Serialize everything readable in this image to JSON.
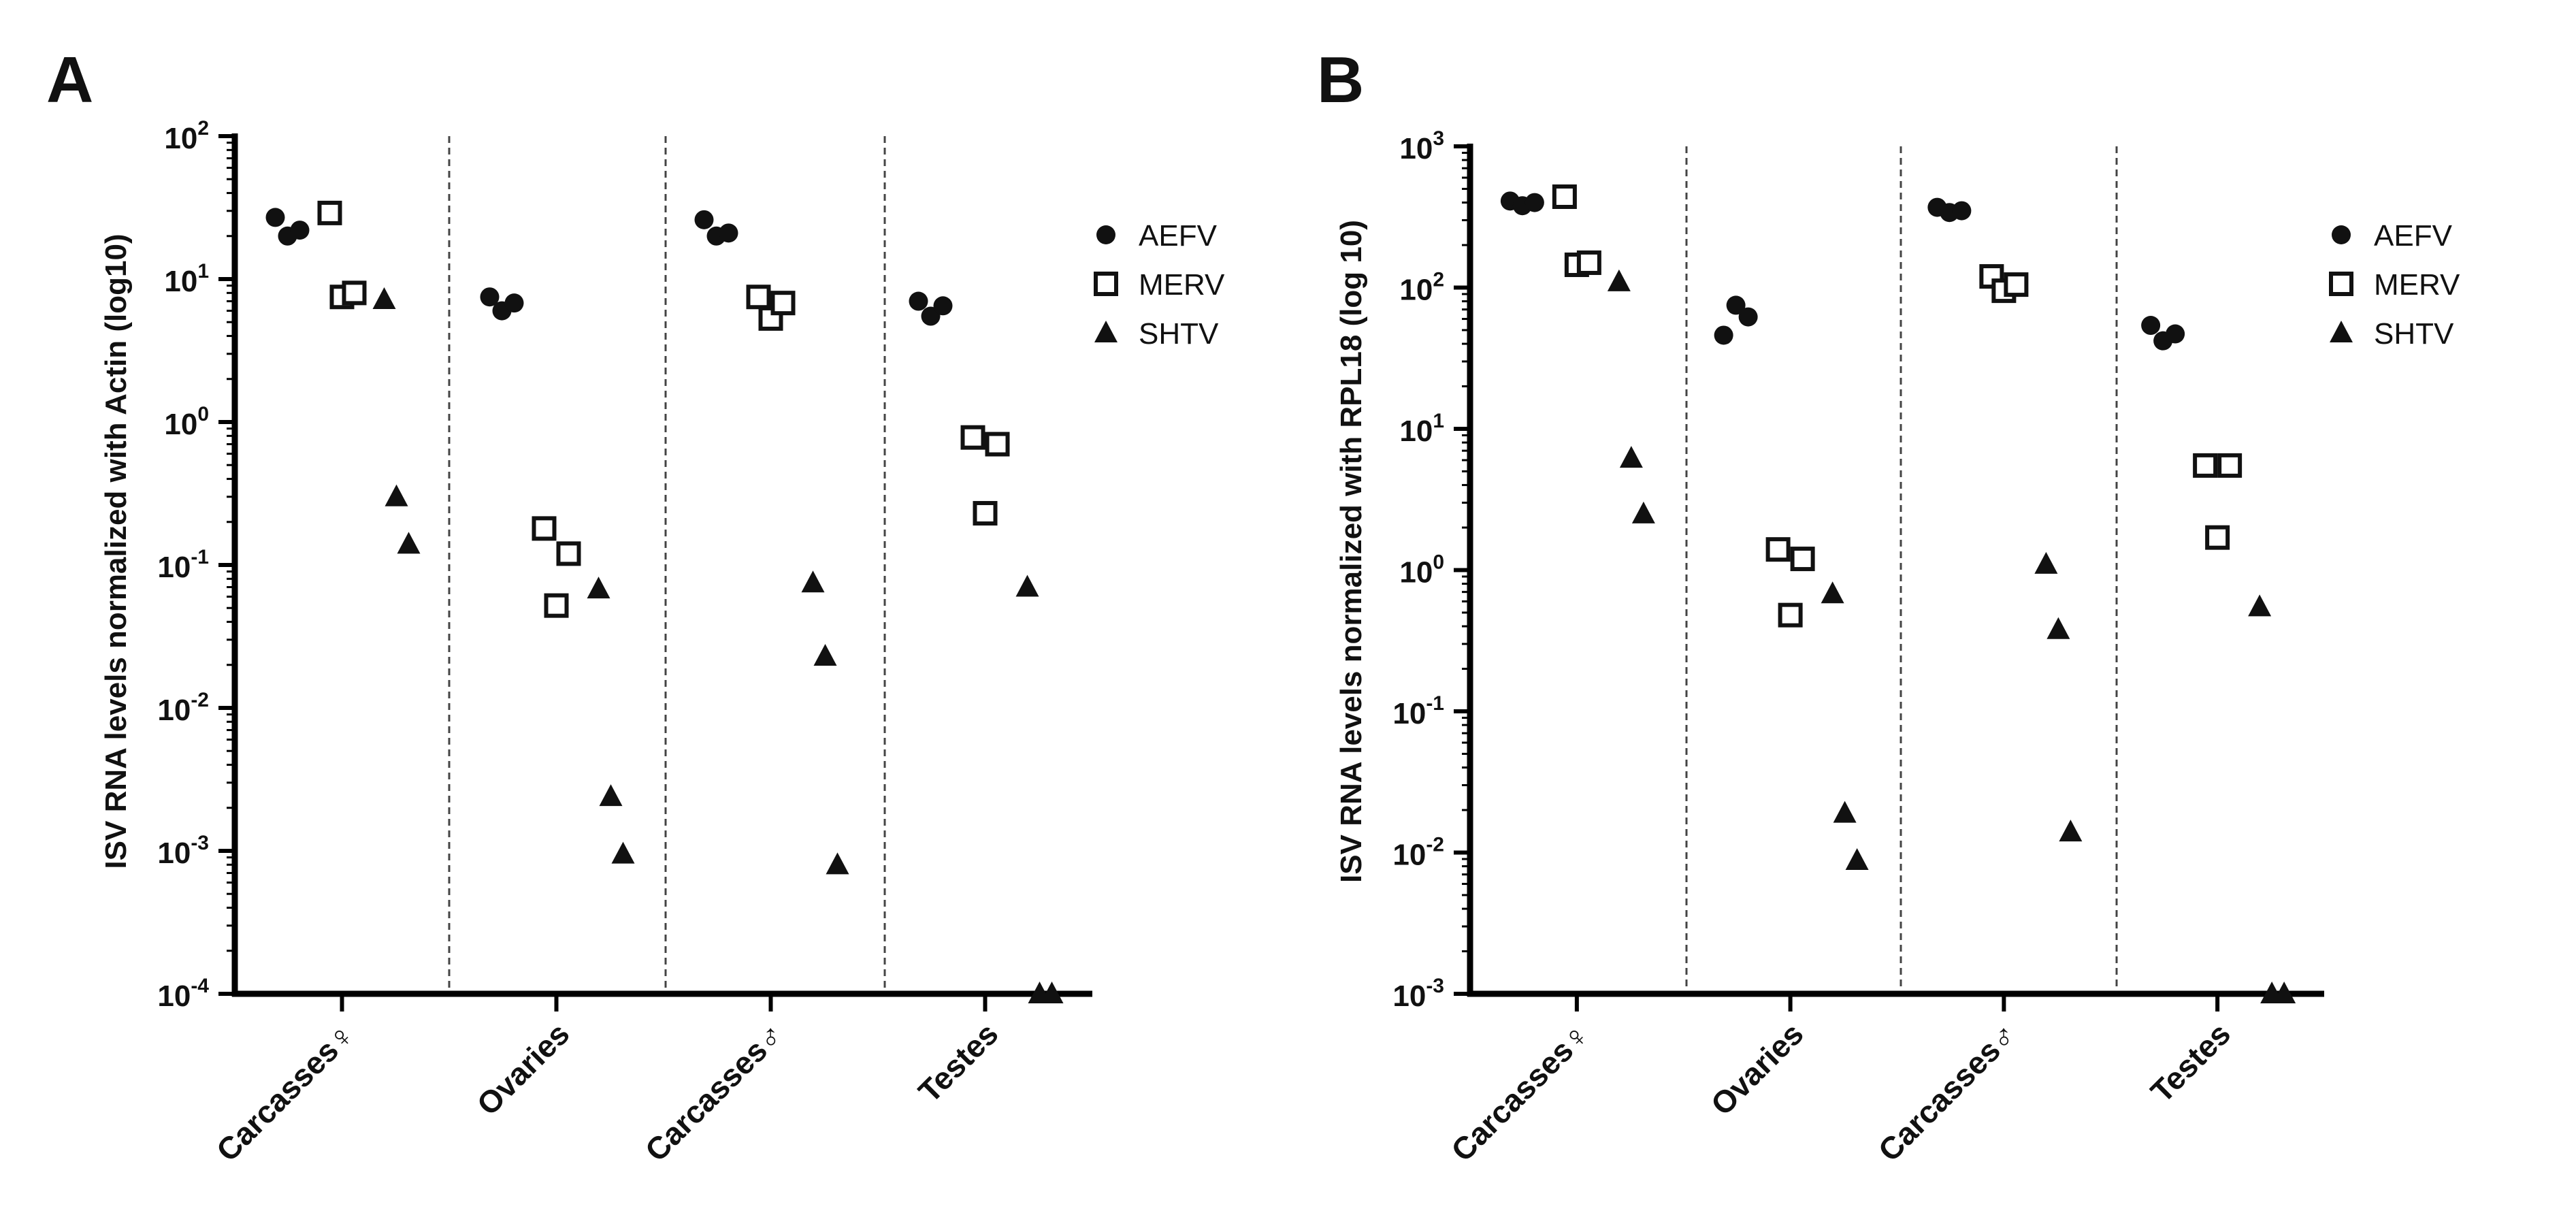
{
  "chart_data": [
    {
      "panel": "A",
      "type": "scatter",
      "yscale": "log",
      "ylabel": "ISV RNA levels normalized with Actin (log10)",
      "y_tick_labels": [
        {
          "base": "10",
          "exp": "-4"
        },
        {
          "base": "10",
          "exp": "-3"
        },
        {
          "base": "10",
          "exp": "-2"
        },
        {
          "base": "10",
          "exp": "-1"
        },
        {
          "base": "10",
          "exp": "0"
        },
        {
          "base": "10",
          "exp": "1"
        },
        {
          "base": "10",
          "exp": "2"
        }
      ],
      "ylim": [
        0.0001,
        100
      ],
      "categories": [
        "Carcasses♀",
        "Ovaries",
        "Carcasses♂",
        "Testes"
      ],
      "series": [
        {
          "name": "AEFV",
          "marker": "circle",
          "values": [
            [
              27,
              20,
              22
            ],
            [
              7.5,
              6.0,
              6.8
            ],
            [
              26,
              20,
              21
            ],
            [
              7.0,
              5.5,
              6.5
            ]
          ]
        },
        {
          "name": "MERV",
          "marker": "square",
          "values": [
            [
              29,
              7.5,
              8.0
            ],
            [
              0.18,
              0.052,
              0.12
            ],
            [
              7.5,
              5.3,
              6.8
            ],
            [
              0.78,
              0.23,
              0.7
            ]
          ]
        },
        {
          "name": "SHTV",
          "marker": "triangle",
          "values": [
            [
              7.2,
              0.3,
              0.14
            ],
            [
              0.068,
              0.0024,
              0.00095
            ],
            [
              0.075,
              0.023,
              0.0008
            ],
            [
              0.07,
              0.0001,
              0.0001
            ]
          ]
        }
      ],
      "legend": [
        "AEFV",
        "MERV",
        "SHTV"
      ],
      "legend_position": "top-right"
    },
    {
      "panel": "B",
      "type": "scatter",
      "yscale": "log",
      "ylabel": "ISV RNA levels normalized with RPL18 (log 10)",
      "y_tick_labels": [
        {
          "base": "10",
          "exp": "-3"
        },
        {
          "base": "10",
          "exp": "-2"
        },
        {
          "base": "10",
          "exp": "-1"
        },
        {
          "base": "10",
          "exp": "0"
        },
        {
          "base": "10",
          "exp": "1"
        },
        {
          "base": "10",
          "exp": "2"
        },
        {
          "base": "10",
          "exp": "3"
        }
      ],
      "ylim": [
        0.001,
        1000
      ],
      "categories": [
        "Carcasses♀",
        "Ovaries",
        "Carcasses♂",
        "Testes"
      ],
      "series": [
        {
          "name": "AEFV",
          "marker": "circle",
          "values": [
            [
              410,
              380,
              400
            ],
            [
              46,
              75,
              62
            ],
            [
              370,
              340,
              350
            ],
            [
              54,
              42,
              47
            ]
          ]
        },
        {
          "name": "MERV",
          "marker": "square",
          "values": [
            [
              440,
              145,
              150
            ],
            [
              1.4,
              0.48,
              1.2
            ],
            [
              120,
              95,
              105
            ],
            [
              5.5,
              1.7,
              5.5
            ]
          ]
        },
        {
          "name": "SHTV",
          "marker": "triangle",
          "values": [
            [
              110,
              6.2,
              2.5
            ],
            [
              0.68,
              0.019,
              0.0088
            ],
            [
              1.1,
              0.38,
              0.014
            ],
            [
              0.55,
              0.001,
              0.001
            ]
          ]
        }
      ],
      "legend": [
        "AEFV",
        "MERV",
        "SHTV"
      ],
      "legend_position": "top-right"
    }
  ]
}
